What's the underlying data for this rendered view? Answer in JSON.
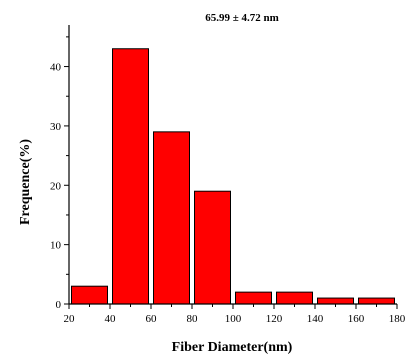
{
  "chart_data": {
    "type": "bar",
    "title": "65.99 ± 4.72 nm",
    "xlabel": "Fiber Diameter(nm)",
    "ylabel": "Frequence(%)",
    "xlim": [
      20,
      180
    ],
    "ylim": [
      0,
      47
    ],
    "x_ticks": [
      20,
      40,
      60,
      80,
      100,
      120,
      140,
      160,
      180
    ],
    "y_ticks": [
      0,
      10,
      20,
      30,
      40
    ],
    "bin_width": 20,
    "bins": [
      {
        "center": 30,
        "value": 3
      },
      {
        "center": 50,
        "value": 43
      },
      {
        "center": 70,
        "value": 29
      },
      {
        "center": 90,
        "value": 19
      },
      {
        "center": 110,
        "value": 2
      },
      {
        "center": 130,
        "value": 2
      },
      {
        "center": 150,
        "value": 1
      },
      {
        "center": 170,
        "value": 1
      }
    ],
    "bar_color": "#ff0000",
    "grid": false,
    "legend": "none"
  }
}
